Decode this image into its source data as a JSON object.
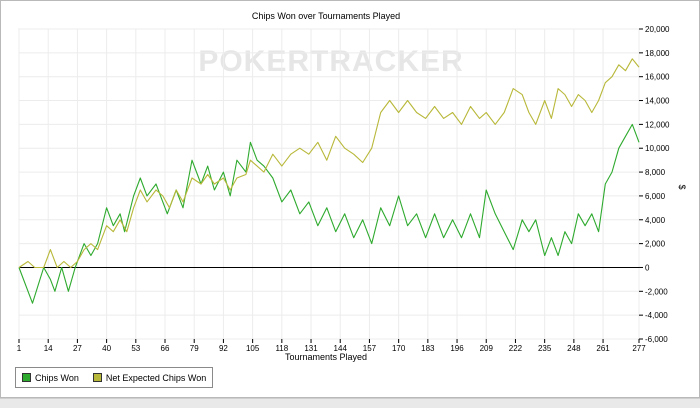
{
  "chart_data": {
    "type": "line",
    "title": "Chips Won over Tournaments Played",
    "xlabel": "Tournaments Played",
    "ylabel": "$",
    "watermark": "POKERTRACKER",
    "x_ticks": [
      1,
      14,
      27,
      40,
      53,
      66,
      79,
      92,
      105,
      118,
      131,
      144,
      157,
      170,
      183,
      196,
      209,
      222,
      235,
      248,
      261,
      277
    ],
    "y_ticks": [
      -6000,
      -4000,
      -2000,
      0,
      2000,
      4000,
      6000,
      8000,
      10000,
      12000,
      14000,
      16000,
      18000,
      20000
    ],
    "y_tick_labels": [
      "-6,000",
      "-4,000",
      "-2,000",
      "0",
      "2,000",
      "4,000",
      "6,000",
      "8,000",
      "10,000",
      "12,000",
      "14,000",
      "16,000",
      "18,000",
      "20,000"
    ],
    "xlim": [
      1,
      277
    ],
    "ylim": [
      -6000,
      20000
    ],
    "grid": true,
    "legend_position": "bottom-left",
    "series": [
      {
        "name": "Chips Won",
        "color": "#2eaa2e",
        "points": [
          [
            1,
            0
          ],
          [
            7,
            -3000
          ],
          [
            12,
            0
          ],
          [
            15,
            -1000
          ],
          [
            17,
            -2000
          ],
          [
            20,
            0
          ],
          [
            23,
            -2000
          ],
          [
            26,
            0
          ],
          [
            30,
            2000
          ],
          [
            33,
            1000
          ],
          [
            36,
            2000
          ],
          [
            40,
            5000
          ],
          [
            43,
            3500
          ],
          [
            46,
            4500
          ],
          [
            48,
            3000
          ],
          [
            52,
            6000
          ],
          [
            55,
            7500
          ],
          [
            58,
            6000
          ],
          [
            62,
            7000
          ],
          [
            65,
            5500
          ],
          [
            67,
            4500
          ],
          [
            71,
            6500
          ],
          [
            74,
            5000
          ],
          [
            78,
            9000
          ],
          [
            82,
            7000
          ],
          [
            85,
            8500
          ],
          [
            88,
            6500
          ],
          [
            92,
            8000
          ],
          [
            95,
            6000
          ],
          [
            98,
            9000
          ],
          [
            102,
            8000
          ],
          [
            104,
            10500
          ],
          [
            107,
            9000
          ],
          [
            110,
            8500
          ],
          [
            114,
            7500
          ],
          [
            118,
            5500
          ],
          [
            122,
            6500
          ],
          [
            126,
            4500
          ],
          [
            130,
            5500
          ],
          [
            134,
            3500
          ],
          [
            138,
            5000
          ],
          [
            142,
            3000
          ],
          [
            146,
            4500
          ],
          [
            150,
            2500
          ],
          [
            154,
            4000
          ],
          [
            158,
            2000
          ],
          [
            162,
            5000
          ],
          [
            166,
            3500
          ],
          [
            170,
            6000
          ],
          [
            174,
            3500
          ],
          [
            178,
            4500
          ],
          [
            182,
            2500
          ],
          [
            186,
            4500
          ],
          [
            190,
            2500
          ],
          [
            194,
            4000
          ],
          [
            198,
            2500
          ],
          [
            202,
            4500
          ],
          [
            206,
            2500
          ],
          [
            209,
            6500
          ],
          [
            213,
            4500
          ],
          [
            217,
            3000
          ],
          [
            221,
            1500
          ],
          [
            225,
            4000
          ],
          [
            228,
            3000
          ],
          [
            231,
            4000
          ],
          [
            235,
            1000
          ],
          [
            238,
            2500
          ],
          [
            241,
            1000
          ],
          [
            244,
            3000
          ],
          [
            247,
            2000
          ],
          [
            250,
            4500
          ],
          [
            253,
            3500
          ],
          [
            256,
            4500
          ],
          [
            259,
            3000
          ],
          [
            262,
            7000
          ],
          [
            265,
            8000
          ],
          [
            268,
            10000
          ],
          [
            271,
            11000
          ],
          [
            274,
            12000
          ],
          [
            277,
            10500
          ]
        ]
      },
      {
        "name": "Net Expected Chips Won",
        "color": "#b8b83a",
        "points": [
          [
            1,
            0
          ],
          [
            5,
            500
          ],
          [
            8,
            0
          ],
          [
            12,
            0
          ],
          [
            15,
            1500
          ],
          [
            18,
            0
          ],
          [
            21,
            500
          ],
          [
            24,
            0
          ],
          [
            27,
            500
          ],
          [
            30,
            1500
          ],
          [
            33,
            2000
          ],
          [
            36,
            1500
          ],
          [
            40,
            3500
          ],
          [
            43,
            3000
          ],
          [
            46,
            4000
          ],
          [
            49,
            3000
          ],
          [
            52,
            5000
          ],
          [
            55,
            6500
          ],
          [
            58,
            5500
          ],
          [
            62,
            6500
          ],
          [
            65,
            6000
          ],
          [
            68,
            5000
          ],
          [
            71,
            6500
          ],
          [
            74,
            5500
          ],
          [
            78,
            7500
          ],
          [
            82,
            7000
          ],
          [
            85,
            7800
          ],
          [
            88,
            7000
          ],
          [
            92,
            7500
          ],
          [
            95,
            6500
          ],
          [
            98,
            7500
          ],
          [
            102,
            7800
          ],
          [
            104,
            9000
          ],
          [
            107,
            8500
          ],
          [
            110,
            8000
          ],
          [
            114,
            9500
          ],
          [
            118,
            8500
          ],
          [
            122,
            9500
          ],
          [
            126,
            10000
          ],
          [
            130,
            9500
          ],
          [
            134,
            10500
          ],
          [
            138,
            9000
          ],
          [
            142,
            11000
          ],
          [
            146,
            10000
          ],
          [
            150,
            9500
          ],
          [
            154,
            8800
          ],
          [
            158,
            10000
          ],
          [
            162,
            13000
          ],
          [
            166,
            14000
          ],
          [
            170,
            13000
          ],
          [
            174,
            14000
          ],
          [
            178,
            13000
          ],
          [
            182,
            12500
          ],
          [
            186,
            13500
          ],
          [
            190,
            12500
          ],
          [
            194,
            13000
          ],
          [
            198,
            12000
          ],
          [
            202,
            13500
          ],
          [
            206,
            12500
          ],
          [
            209,
            13000
          ],
          [
            213,
            12000
          ],
          [
            217,
            13000
          ],
          [
            221,
            15000
          ],
          [
            225,
            14500
          ],
          [
            228,
            13000
          ],
          [
            231,
            12000
          ],
          [
            235,
            14000
          ],
          [
            238,
            12500
          ],
          [
            241,
            15000
          ],
          [
            244,
            14500
          ],
          [
            247,
            13500
          ],
          [
            250,
            14500
          ],
          [
            253,
            14000
          ],
          [
            256,
            13000
          ],
          [
            259,
            14000
          ],
          [
            262,
            15500
          ],
          [
            265,
            16000
          ],
          [
            268,
            17000
          ],
          [
            271,
            16500
          ],
          [
            274,
            17500
          ],
          [
            277,
            16800
          ]
        ]
      }
    ]
  },
  "footer": {}
}
